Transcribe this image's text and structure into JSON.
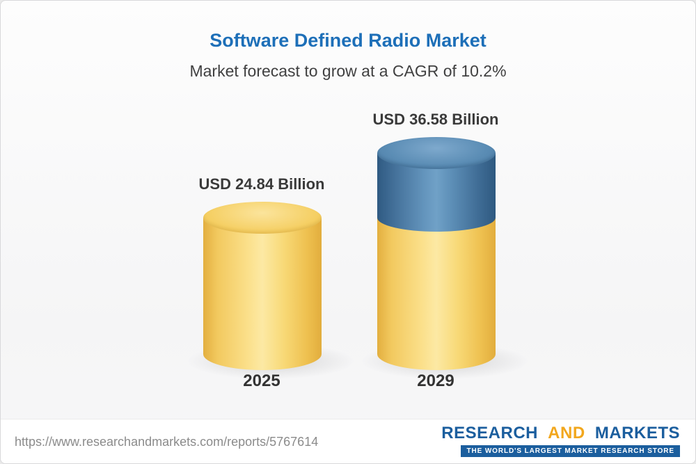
{
  "header": {
    "title": "Software Defined Radio Market",
    "subtitle": "Market forecast to grow at a CAGR of 10.2%"
  },
  "chart_data": {
    "type": "bar",
    "subtype": "3d-cylinder",
    "title": "Software Defined Radio Market",
    "subtitle": "Market forecast to grow at a CAGR of 10.2%",
    "cagr_percent": 10.2,
    "unit": "USD Billion",
    "categories": [
      "2025",
      "2029"
    ],
    "values": [
      24.84,
      36.58
    ],
    "value_labels": [
      "USD 24.84 Billion",
      "USD 36.58 Billion"
    ],
    "legend": "none",
    "grid": false,
    "segment_colors": {
      "base": "#f3c95c",
      "growth": "#4e7ea7"
    },
    "note": "2029 bar shows base value in yellow with incremental growth over 2025 in blue"
  },
  "footer": {
    "url": "https://www.researchandmarkets.com/reports/5767614",
    "logo": {
      "word_research": "RESEARCH",
      "word_and": "AND",
      "word_markets": "MARKETS",
      "tagline": "THE WORLD'S LARGEST MARKET RESEARCH STORE"
    }
  },
  "colors": {
    "title_blue": "#1d6fb8",
    "subtitle_gray": "#404041",
    "label_dark": "#3a3a3a",
    "url_gray": "#8b8b8b",
    "logo_blue": "#1b5e9e",
    "logo_yellow": "#f2a71d"
  }
}
